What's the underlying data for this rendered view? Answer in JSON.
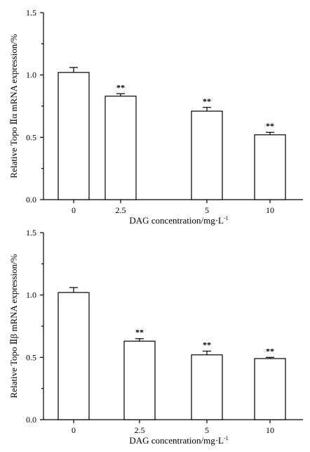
{
  "chart_data": [
    {
      "type": "bar",
      "title": "",
      "ylabel": "Relative Topo Ⅱα mRNA expression/%",
      "xlabel": "DAG concentration/mg·L",
      "xlabel_sup": "-1",
      "categories": [
        "0",
        "2.5",
        "5",
        "10"
      ],
      "values": [
        1.02,
        0.83,
        0.71,
        0.52
      ],
      "errors": [
        0.04,
        0.02,
        0.03,
        0.02
      ],
      "significance": [
        "",
        "**",
        "**",
        "**"
      ],
      "ylim": [
        0,
        1.5
      ],
      "yticks": [
        "0.0",
        "0.5",
        "1.0",
        "1.5"
      ],
      "grid": false
    },
    {
      "type": "bar",
      "title": "",
      "ylabel": "Relative Topo Ⅱβ mRNA expression/%",
      "xlabel": "DAG concentration/mg·L",
      "xlabel_sup": "-1",
      "categories": [
        "0",
        "2.5",
        "5",
        "10"
      ],
      "values": [
        1.02,
        0.63,
        0.52,
        0.49
      ],
      "errors": [
        0.04,
        0.02,
        0.03,
        0.01
      ],
      "significance": [
        "",
        "**",
        "**",
        "**"
      ],
      "ylim": [
        0,
        1.5
      ],
      "yticks": [
        "0.0",
        "0.5",
        "1.0",
        "1.5"
      ],
      "grid": false
    }
  ]
}
